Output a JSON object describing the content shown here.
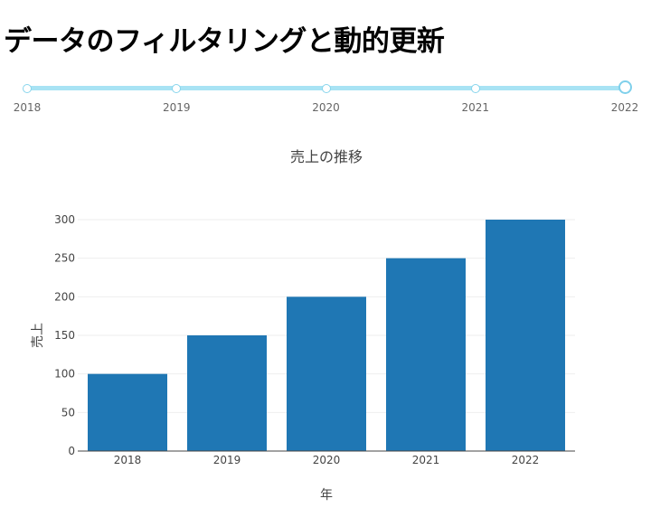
{
  "page": {
    "title": "データのフィルタリングと動的更新"
  },
  "slider": {
    "marks": [
      "2018",
      "2019",
      "2020",
      "2021",
      "2022"
    ],
    "selected": "2022"
  },
  "colors": {
    "bar": "#1f77b4",
    "slider_rail": "#a8e3f4",
    "grid": "#eeeeee"
  },
  "chart_data": {
    "type": "bar",
    "title": "売上の推移",
    "xlabel": "年",
    "ylabel": "売上",
    "categories": [
      "2018",
      "2019",
      "2020",
      "2021",
      "2022"
    ],
    "values": [
      100,
      150,
      200,
      250,
      300
    ],
    "ylim": [
      0,
      300
    ],
    "yticks": [
      0,
      50,
      100,
      150,
      200,
      250,
      300
    ],
    "grid": true
  }
}
